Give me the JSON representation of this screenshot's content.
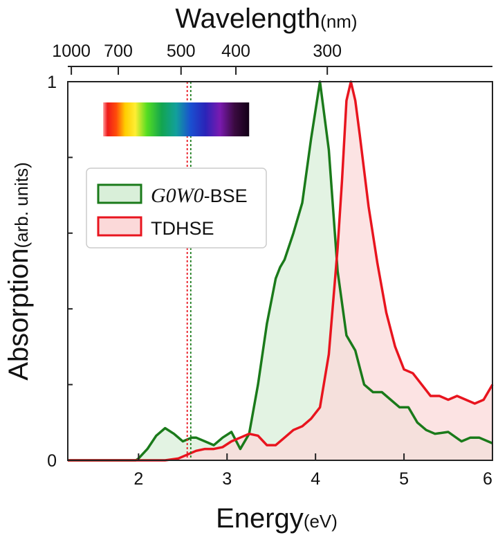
{
  "chart_data": {
    "type": "area",
    "title": "",
    "xlabel": "Energy",
    "xlabel_unit": "(eV)",
    "ylabel": "Absorption",
    "ylabel_unit": "(arb. units)",
    "x_top_label": "Wavelength",
    "x_top_label_unit": "(nm)",
    "xlim": [
      1.2,
      6.0
    ],
    "ylim": [
      0,
      1
    ],
    "x_ticks": [
      2,
      3,
      4,
      5,
      6
    ],
    "y_ticks": [
      0,
      1
    ],
    "top_ticks": [
      {
        "label": "1000",
        "energy": 1.24
      },
      {
        "label": "700",
        "energy": 1.771
      },
      {
        "label": "500",
        "energy": 2.48
      },
      {
        "label": "400",
        "energy": 3.1
      },
      {
        "label": "300",
        "energy": 4.133
      }
    ],
    "vertical_lines": [
      {
        "energy": 2.55,
        "color": "#e8141e"
      },
      {
        "energy": 2.59,
        "color": "#1a7a1a"
      }
    ],
    "spectrum_bar": {
      "energy_start": 1.6,
      "energy_end": 3.25
    },
    "legend_position": "upper-left",
    "series": [
      {
        "name": "G0W0-BSE",
        "legend_italic_part": "G0W0",
        "legend_suffix": "-BSE",
        "line_color": "#1a7a1a",
        "fill_color": "#d9efd9",
        "x": [
          1.2,
          1.8,
          1.97,
          2.0,
          2.1,
          2.2,
          2.3,
          2.4,
          2.5,
          2.6,
          2.65,
          2.75,
          2.85,
          2.95,
          3.05,
          3.15,
          3.25,
          3.35,
          3.45,
          3.55,
          3.6,
          3.65,
          3.75,
          3.85,
          3.95,
          4.05,
          4.15,
          4.25,
          4.35,
          4.45,
          4.55,
          4.65,
          4.75,
          4.85,
          4.95,
          5.05,
          5.15,
          5.25,
          5.35,
          5.5,
          5.65,
          5.75,
          5.85,
          6.0
        ],
        "y": [
          0,
          0,
          0,
          0.005,
          0.03,
          0.065,
          0.085,
          0.07,
          0.05,
          0.06,
          0.06,
          0.05,
          0.04,
          0.06,
          0.075,
          0.03,
          0.07,
          0.2,
          0.36,
          0.48,
          0.51,
          0.53,
          0.6,
          0.68,
          0.85,
          1.0,
          0.82,
          0.5,
          0.33,
          0.29,
          0.2,
          0.18,
          0.18,
          0.16,
          0.14,
          0.14,
          0.1,
          0.08,
          0.07,
          0.075,
          0.05,
          0.06,
          0.06,
          0.045
        ]
      },
      {
        "name": "TDHSE",
        "line_color": "#e8141e",
        "fill_color": "#fbd9d9",
        "x": [
          1.2,
          2.0,
          2.3,
          2.45,
          2.55,
          2.65,
          2.75,
          2.85,
          2.95,
          3.05,
          3.15,
          3.25,
          3.35,
          3.45,
          3.55,
          3.65,
          3.75,
          3.85,
          3.95,
          4.05,
          4.15,
          4.25,
          4.3,
          4.35,
          4.4,
          4.45,
          4.5,
          4.6,
          4.7,
          4.8,
          4.9,
          5.0,
          5.1,
          5.2,
          5.3,
          5.4,
          5.5,
          5.6,
          5.7,
          5.8,
          5.9,
          6.0
        ],
        "y": [
          0,
          0,
          0,
          0.005,
          0.015,
          0.025,
          0.03,
          0.03,
          0.035,
          0.05,
          0.06,
          0.07,
          0.065,
          0.04,
          0.04,
          0.06,
          0.08,
          0.09,
          0.11,
          0.14,
          0.28,
          0.56,
          0.74,
          0.95,
          1.0,
          0.95,
          0.86,
          0.67,
          0.52,
          0.39,
          0.3,
          0.24,
          0.23,
          0.2,
          0.17,
          0.17,
          0.16,
          0.17,
          0.16,
          0.15,
          0.16,
          0.2
        ]
      }
    ]
  }
}
